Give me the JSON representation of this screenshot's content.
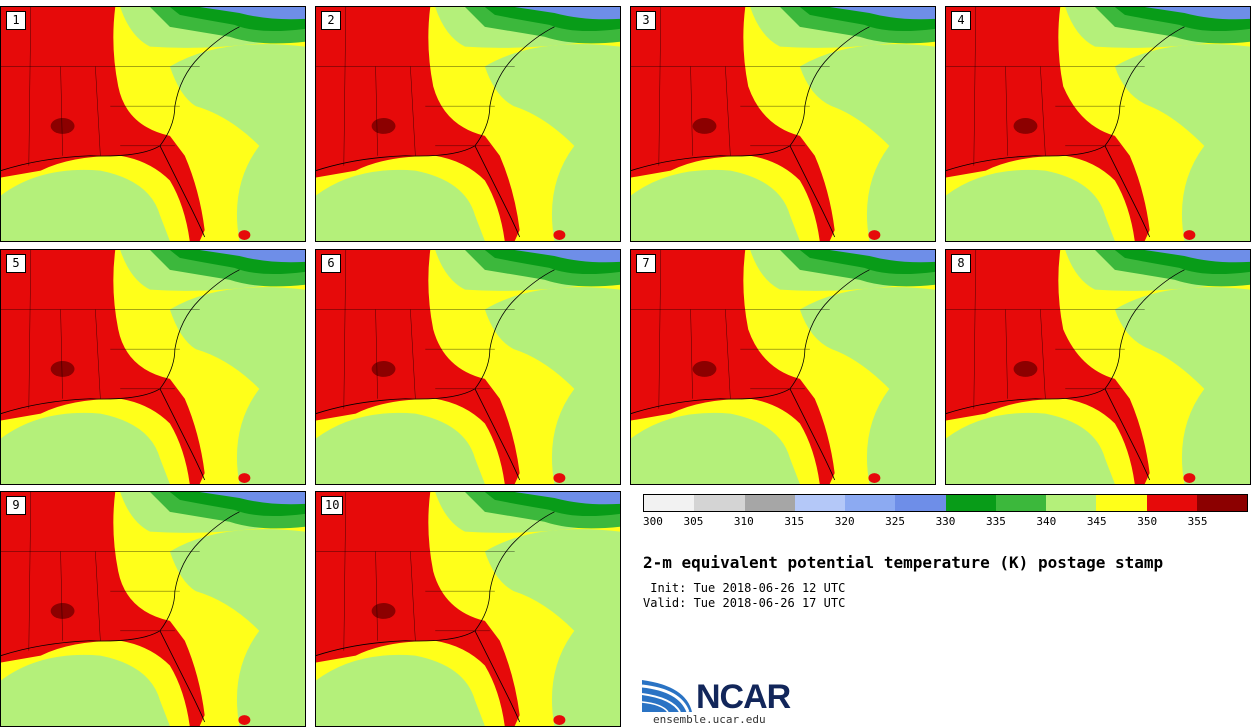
{
  "panels": [
    {
      "label": "1"
    },
    {
      "label": "2"
    },
    {
      "label": "3"
    },
    {
      "label": "4"
    },
    {
      "label": "5"
    },
    {
      "label": "6"
    },
    {
      "label": "7"
    },
    {
      "label": "8"
    },
    {
      "label": "9"
    },
    {
      "label": "10"
    }
  ],
  "colorbar": {
    "colors": [
      "#f2f2f2",
      "#d4d4d4",
      "#a6a6a6",
      "#b4c8f8",
      "#8caaf2",
      "#6e8ee8",
      "#089c18",
      "#3cb83c",
      "#b4f07a",
      "#ffff1a",
      "#e60a0a",
      "#8c0000"
    ],
    "labels": [
      "300",
      "305",
      "310",
      "315",
      "320",
      "325",
      "330",
      "335",
      "340",
      "345",
      "350",
      "355"
    ]
  },
  "title": "2-m equivalent potential temperature (K) postage stamp",
  "init": " Init: Tue 2018-06-26 12 UTC",
  "valid": "Valid: Tue 2018-06-26 17 UTC",
  "logo_text": "NCAR",
  "site": "ensemble.ucar.edu"
}
